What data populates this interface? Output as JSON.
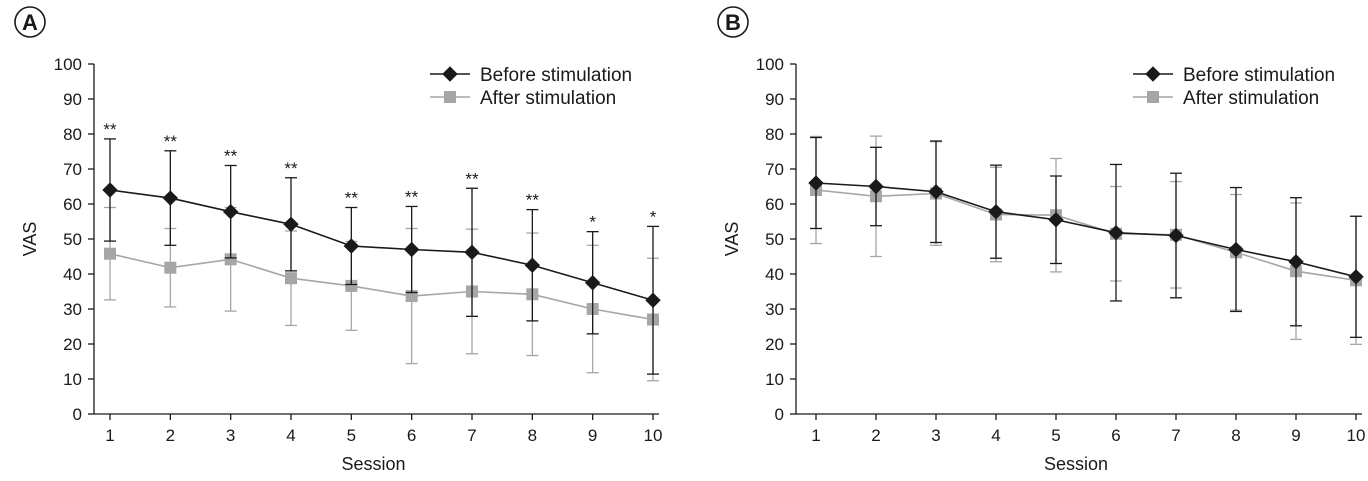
{
  "chart_data": [
    {
      "panel_label": "A",
      "type": "line",
      "xlabel": "Session",
      "ylabel": "VAS",
      "ylim": [
        0,
        100
      ],
      "yticks": [
        0,
        10,
        20,
        30,
        40,
        50,
        60,
        70,
        80,
        90,
        100
      ],
      "x": [
        1,
        2,
        3,
        4,
        5,
        6,
        7,
        8,
        9,
        10
      ],
      "legend_position": "top-right",
      "series": [
        {
          "name": "Before stimulation",
          "color": "#1a1a1a",
          "marker": "diamond",
          "values": [
            64,
            61.7,
            57.8,
            54.2,
            48,
            47,
            46.2,
            42.5,
            37.5,
            32.5
          ],
          "error_plus": [
            14.6,
            13.5,
            13.2,
            13.3,
            11,
            12.3,
            18.3,
            15.9,
            14.6,
            21.1
          ],
          "error_minus": [
            14.6,
            13.5,
            13.2,
            13.3,
            11,
            12.3,
            18.3,
            15.9,
            14.6,
            21.1
          ]
        },
        {
          "name": "After stimulation",
          "color": "#a6a6a6",
          "marker": "square",
          "values": [
            45.8,
            41.8,
            44.2,
            38.8,
            36.6,
            33.7,
            35,
            34.2,
            30,
            27
          ],
          "error_plus": [
            13.2,
            11.2,
            14.8,
            13.5,
            12.7,
            19.3,
            17.8,
            17.5,
            18.2,
            17.5
          ],
          "error_minus": [
            13.2,
            11.2,
            14.8,
            13.5,
            12.7,
            19.3,
            17.8,
            17.5,
            18.2,
            17.5
          ]
        }
      ],
      "annotations": [
        "**",
        "**",
        "**",
        "**",
        "**",
        "**",
        "**",
        "**",
        "*",
        "*"
      ]
    },
    {
      "panel_label": "B",
      "type": "line",
      "xlabel": "Session",
      "ylabel": "VAS",
      "ylim": [
        0,
        100
      ],
      "yticks": [
        0,
        10,
        20,
        30,
        40,
        50,
        60,
        70,
        80,
        90,
        100
      ],
      "x": [
        1,
        2,
        3,
        4,
        5,
        6,
        7,
        8,
        9,
        10
      ],
      "legend_position": "top-right",
      "series": [
        {
          "name": "Before stimulation",
          "color": "#1a1a1a",
          "marker": "diamond",
          "values": [
            66,
            65,
            63.5,
            57.8,
            55.5,
            51.8,
            51,
            47,
            43.5,
            39.2
          ],
          "error_plus": [
            13,
            11.2,
            14.5,
            13.3,
            12.5,
            19.5,
            17.8,
            17.7,
            18.3,
            17.3
          ],
          "error_minus": [
            13,
            11.2,
            14.5,
            13.3,
            12.5,
            19.5,
            17.8,
            17.7,
            18.3,
            17.3
          ]
        },
        {
          "name": "After stimulation",
          "color": "#a6a6a6",
          "marker": "square",
          "values": [
            64,
            62.2,
            63,
            57,
            56.8,
            51.5,
            51.2,
            46.2,
            40.8,
            38.2
          ],
          "error_plus": [
            15.3,
            17.2,
            14.8,
            13.5,
            16.2,
            13.5,
            15.2,
            16.5,
            19.5,
            18.3
          ],
          "error_minus": [
            15.3,
            17.2,
            14.8,
            13.5,
            16.2,
            13.5,
            15.2,
            16.5,
            19.5,
            18.3
          ]
        }
      ],
      "annotations": []
    }
  ]
}
